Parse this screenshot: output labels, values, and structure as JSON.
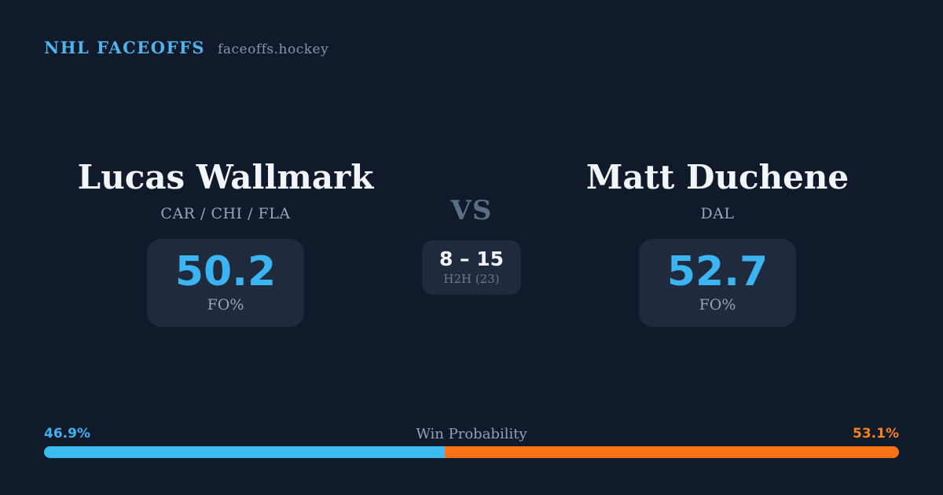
{
  "header": {
    "brand": "NHL FACEOFFS",
    "site": "faceoffs.hockey"
  },
  "players": {
    "left": {
      "name": "Lucas Wallmark",
      "teams": "CAR / CHI / FLA",
      "fo_pct": "50.2",
      "stat_label": "FO%"
    },
    "right": {
      "name": "Matt Duchene",
      "teams": "DAL",
      "fo_pct": "52.7",
      "stat_label": "FO%"
    }
  },
  "matchup": {
    "vs_label": "VS",
    "h2h_score": "8 – 15",
    "h2h_label": "H2H (23)"
  },
  "win_probability": {
    "label": "Win Probability",
    "left_pct_text": "46.9%",
    "right_pct_text": "53.1%",
    "left_value": 46.9,
    "right_value": 53.1
  },
  "colors": {
    "background": "#111a2b",
    "box_background": "#1f2a3c",
    "accent_blue": "#3cb4f2",
    "bar_blue": "#3dbcf2",
    "bar_orange": "#f97316",
    "brand_blue": "#4fb3ec",
    "text_white": "#f2f5fa",
    "text_gray": "#94a3b8"
  }
}
